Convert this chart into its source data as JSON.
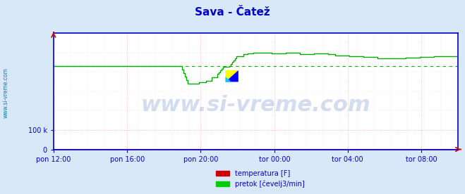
{
  "title": "Sava - Čatež",
  "title_color": "#0000cc",
  "title_fontsize": 11,
  "background_color": "#d8e8f8",
  "plot_bg_color": "#ffffff",
  "axis_color": "#0000cc",
  "grid_color": "#ff9999",
  "grid_color2": "#aaaacc",
  "ylabel_left": "www.si-vreme.com",
  "ylabel_color": "#0088aa",
  "watermark": "www.si-vreme.com",
  "watermark_color": "#1144aa",
  "watermark_alpha": 0.18,
  "watermark_fontsize": 22,
  "xticklabels": [
    "pon 12:00",
    "pon 16:00",
    "pon 20:00",
    "tor 00:00",
    "tor 04:00",
    "tor 08:00"
  ],
  "xtick_fracs": [
    0.0,
    0.182,
    0.364,
    0.546,
    0.727,
    0.909
  ],
  "ytick_vals": [
    0,
    100000
  ],
  "ytick_labels": [
    "0",
    "100 k"
  ],
  "ylim": [
    0,
    600000
  ],
  "xlim_pts": [
    0,
    287
  ],
  "legend_labels": [
    "temperatura [F]",
    "pretok [čevelj3/min]"
  ],
  "legend_colors": [
    "#cc0000",
    "#00cc00"
  ],
  "temp_color": "#cc0000",
  "flow_color": "#00aa00",
  "arrow_color": "#cc0000",
  "dashed_y": 430000,
  "temp_value": 2000,
  "n_points": 288
}
